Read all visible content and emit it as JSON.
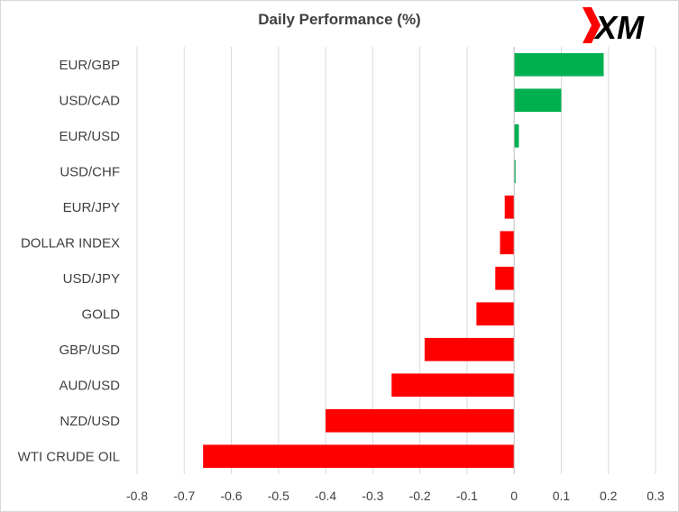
{
  "chart_data": {
    "type": "bar",
    "orientation": "horizontal",
    "title": "Daily Performance (%)",
    "categories": [
      "EUR/GBP",
      "USD/CAD",
      "EUR/USD",
      "USD/CHF",
      "EUR/JPY",
      "DOLLAR INDEX",
      "USD/JPY",
      "GOLD",
      "GBP/USD",
      "AUD/USD",
      "NZD/USD",
      "WTI CRUDE OIL"
    ],
    "values": [
      0.19,
      0.1,
      0.01,
      0.003,
      -0.02,
      -0.03,
      -0.04,
      -0.08,
      -0.19,
      -0.26,
      -0.4,
      -0.66
    ],
    "xlim": [
      -0.8,
      0.3
    ],
    "xticks": [
      "-0.8",
      "-0.7",
      "-0.6",
      "-0.5",
      "-0.4",
      "-0.3",
      "-0.2",
      "-0.1",
      "0",
      "0.1",
      "0.2",
      "0.3"
    ],
    "xlabel": "",
    "ylabel": "",
    "grid": "vertical",
    "legend": "none",
    "colors": {
      "positive": "#00b050",
      "negative": "#ff0000",
      "grid": "#d9d9d9",
      "text": "#404040"
    }
  },
  "logo": {
    "text": "XM",
    "mark_color": "#ff0000",
    "text_color": "#000000"
  }
}
